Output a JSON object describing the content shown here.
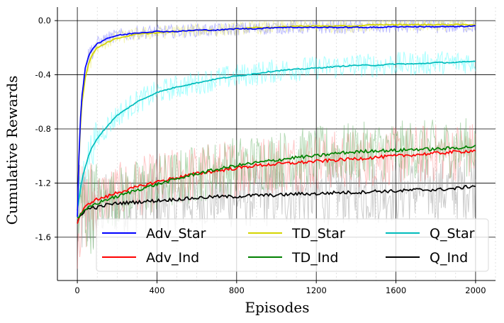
{
  "chart_data": {
    "type": "line",
    "xlabel": "Episodes",
    "ylabel": "Cumulative Rewards",
    "xlim": [
      -100,
      2100
    ],
    "ylim": [
      -1.92,
      0.1
    ],
    "xticks": [
      0,
      400,
      800,
      1200,
      1600,
      2000
    ],
    "yticks": [
      0.0,
      -0.4,
      -0.8,
      -1.2,
      -1.6
    ],
    "xtick_labels": [
      "0",
      "400",
      "800",
      "1200",
      "1600",
      "2000"
    ],
    "ytick_labels": [
      "0.0",
      "-0.4",
      "-0.8",
      "-1.2",
      "-1.6"
    ],
    "grid": true,
    "legend_position": "lower-center",
    "x": [
      0,
      10,
      20,
      40,
      60,
      80,
      100,
      150,
      200,
      300,
      400,
      500,
      600,
      700,
      800,
      900,
      1000,
      1100,
      1200,
      1300,
      1400,
      1500,
      1600,
      1700,
      1800,
      1900,
      2000
    ],
    "series": [
      {
        "name": "Adv_Star",
        "color": "#0000ff",
        "values": [
          -1.45,
          -0.9,
          -0.6,
          -0.35,
          -0.25,
          -0.2,
          -0.17,
          -0.13,
          -0.11,
          -0.09,
          -0.08,
          -0.08,
          -0.07,
          -0.07,
          -0.06,
          -0.06,
          -0.05,
          -0.05,
          -0.05,
          -0.05,
          -0.05,
          -0.05,
          -0.045,
          -0.045,
          -0.045,
          -0.045,
          -0.04
        ]
      },
      {
        "name": "TD_Star",
        "color": "#d4d400",
        "values": [
          -1.4,
          -0.95,
          -0.65,
          -0.42,
          -0.3,
          -0.24,
          -0.2,
          -0.16,
          -0.13,
          -0.1,
          -0.09,
          -0.08,
          -0.07,
          -0.07,
          -0.06,
          -0.05,
          -0.05,
          -0.04,
          -0.04,
          -0.04,
          -0.04,
          -0.03,
          -0.03,
          -0.03,
          -0.03,
          -0.03,
          -0.03
        ]
      },
      {
        "name": "Q_Star",
        "color": "#00bcbc",
        "values": [
          -1.4,
          -1.3,
          -1.2,
          -1.08,
          -0.98,
          -0.92,
          -0.87,
          -0.78,
          -0.7,
          -0.6,
          -0.53,
          -0.49,
          -0.46,
          -0.43,
          -0.41,
          -0.39,
          -0.37,
          -0.36,
          -0.35,
          -0.34,
          -0.33,
          -0.33,
          -0.32,
          -0.32,
          -0.31,
          -0.31,
          -0.3
        ]
      },
      {
        "name": "Adv_Ind",
        "color": "#ff0000",
        "values": [
          -1.5,
          -1.45,
          -1.42,
          -1.38,
          -1.35,
          -1.33,
          -1.32,
          -1.3,
          -1.27,
          -1.23,
          -1.19,
          -1.16,
          -1.13,
          -1.11,
          -1.09,
          -1.07,
          -1.06,
          -1.05,
          -1.04,
          -1.03,
          -1.02,
          -1.01,
          -1.0,
          -0.99,
          -0.98,
          -0.97,
          -0.96
        ]
      },
      {
        "name": "TD_Ind",
        "color": "#008000",
        "values": [
          -1.45,
          -1.45,
          -1.43,
          -1.4,
          -1.38,
          -1.36,
          -1.35,
          -1.32,
          -1.3,
          -1.25,
          -1.21,
          -1.17,
          -1.13,
          -1.1,
          -1.07,
          -1.05,
          -1.03,
          -1.01,
          -1.0,
          -0.98,
          -0.97,
          -0.96,
          -0.96,
          -0.95,
          -0.95,
          -0.94,
          -0.93
        ]
      },
      {
        "name": "Q_Ind",
        "color": "#000000",
        "values": [
          -1.5,
          -1.45,
          -1.43,
          -1.4,
          -1.39,
          -1.38,
          -1.38,
          -1.36,
          -1.35,
          -1.34,
          -1.33,
          -1.32,
          -1.31,
          -1.3,
          -1.3,
          -1.29,
          -1.29,
          -1.28,
          -1.28,
          -1.27,
          -1.27,
          -1.26,
          -1.26,
          -1.25,
          -1.25,
          -1.24,
          -1.22
        ]
      }
    ],
    "legend_order": [
      "Adv_Star",
      "TD_Star",
      "Q_Star",
      "Adv_Ind",
      "TD_Ind",
      "Q_Ind"
    ]
  }
}
